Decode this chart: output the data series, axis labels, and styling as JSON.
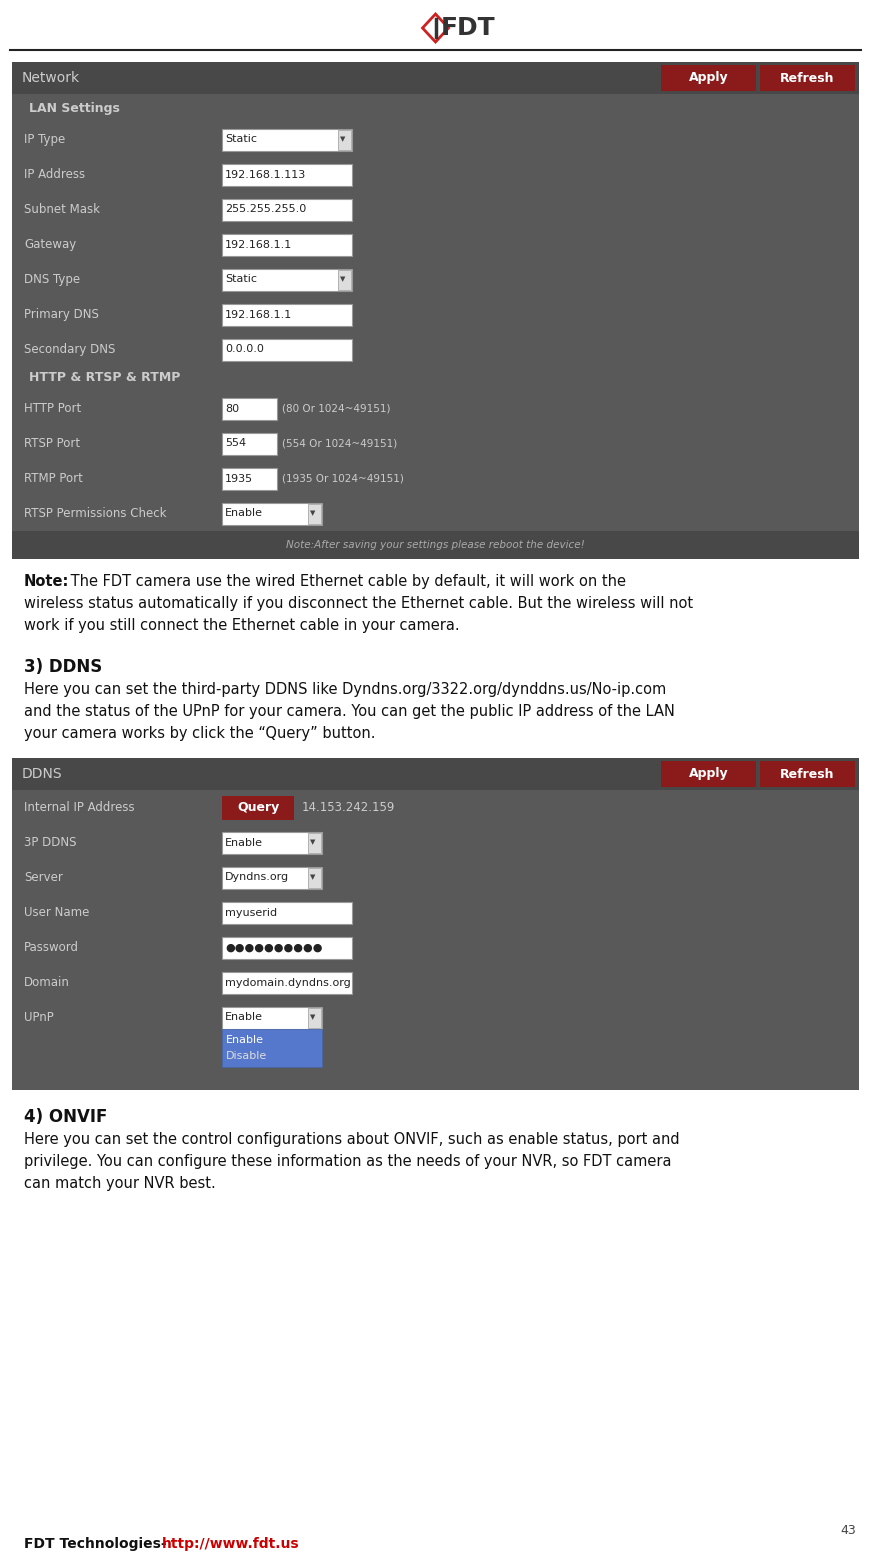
{
  "bg_color": "#ffffff",
  "panel_bg": "#595959",
  "panel_header_bg": "#484848",
  "panel_row_alt": "#505050",
  "red_btn": "#8b1a1a",
  "white": "#ffffff",
  "light_gray": "#cccccc",
  "dark_text": "#111111",
  "input_border": "#aaaaaa",
  "note_blue": "#5577cc",
  "footer_note_color": "#aaaaaa",
  "logo_red": "#cc2222",
  "logo_dark": "#333333",
  "page_num": "43",
  "footer_black": "FDT Technologies-",
  "footer_red": "http://www.fdt.us",
  "network_title": "Network",
  "apply_btn": "Apply",
  "refresh_btn": "Refresh",
  "lan_section": "LAN Settings",
  "lan_rows": [
    {
      "label": "IP Type",
      "value": "Static",
      "dropdown": true
    },
    {
      "label": "IP Address",
      "value": "192.168.1.113",
      "dropdown": false
    },
    {
      "label": "Subnet Mask",
      "value": "255.255.255.0",
      "dropdown": false
    },
    {
      "label": "Gateway",
      "value": "192.168.1.1",
      "dropdown": false
    },
    {
      "label": "DNS Type",
      "value": "Static",
      "dropdown": true
    },
    {
      "label": "Primary DNS",
      "value": "192.168.1.1",
      "dropdown": false
    },
    {
      "label": "Secondary DNS",
      "value": "0.0.0.0",
      "dropdown": false
    }
  ],
  "http_section": "HTTP & RTSP & RTMP",
  "http_rows": [
    {
      "label": "HTTP Port",
      "value": "80",
      "note": "(80 Or 1024~49151)",
      "dropdown": false
    },
    {
      "label": "RTSP Port",
      "value": "554",
      "note": "(554 Or 1024~49151)",
      "dropdown": false
    },
    {
      "label": "RTMP Port",
      "value": "1935",
      "note": "(1935 Or 1024~49151)",
      "dropdown": false
    },
    {
      "label": "RTSP Permissions Check",
      "value": "Enable",
      "note": "",
      "dropdown": true
    }
  ],
  "panel_footer_note": "Note:After saving your settings please reboot the device!",
  "note_bold": "Note:",
  "note_rest1": " The FDT camera use the wired Ethernet cable by default, it will work on the",
  "note_line2": "wireless status automatically if you disconnect the Ethernet cable. But the wireless will not",
  "note_line3": "work if you still connect the Ethernet cable in your camera.",
  "ddns_header": "3) DDNS",
  "ddns_line1": "Here you can set the third-party DDNS like Dyndns.org/3322.org/dynddns.us/No-ip.com",
  "ddns_line2": "and the status of the UPnP for your camera. You can get the public IP address of the LAN",
  "ddns_line3": "your camera works by click the “Query” button.",
  "ddns_title": "DDNS",
  "ddns_rows": [
    {
      "label": "Internal IP Address",
      "value": "14.153.242.159",
      "query": true,
      "dropdown": false
    },
    {
      "label": "3P DDNS",
      "value": "Enable",
      "query": false,
      "dropdown": true
    },
    {
      "label": "Server",
      "value": "Dyndns.org",
      "query": false,
      "dropdown": true
    },
    {
      "label": "User Name",
      "value": "myuserid",
      "query": false,
      "dropdown": false
    },
    {
      "label": "Password",
      "value": "●●●●●●●●●●",
      "query": false,
      "dropdown": false
    },
    {
      "label": "Domain",
      "value": "mydomain.dyndns.org",
      "query": false,
      "dropdown": false
    },
    {
      "label": "UPnP",
      "value": "Enable",
      "query": false,
      "dropdown": true,
      "menu": true
    }
  ],
  "onvif_header": "4) ONVIF",
  "onvif_line1": "Here you can set the control configurations about ONVIF, such as enable status, port and",
  "onvif_line2": "privilege. You can configure these information as the needs of your NVR, so FDT camera",
  "onvif_line3": "can match your NVR best."
}
